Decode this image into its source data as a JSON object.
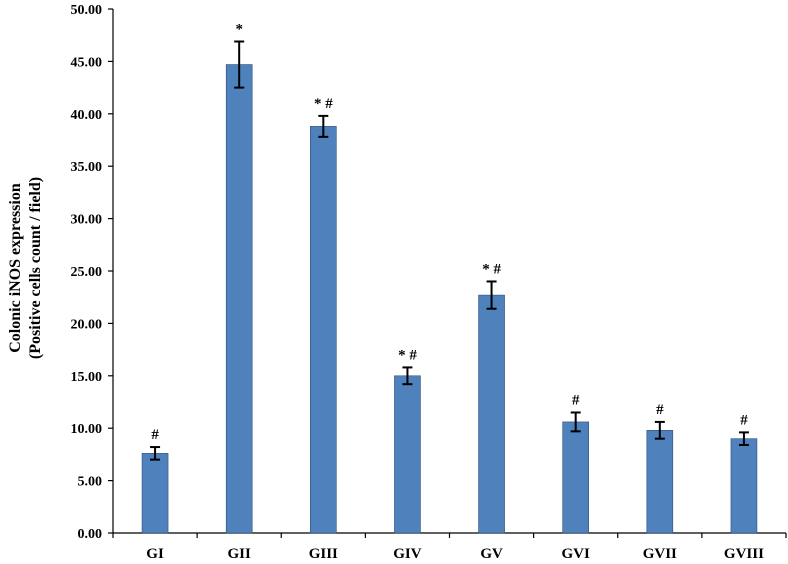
{
  "chart_data": {
    "type": "bar",
    "categories": [
      "GI",
      "GII",
      "GIII",
      "GIV",
      "GV",
      "GVI",
      "GVII",
      "GVIII"
    ],
    "values": [
      7.6,
      44.7,
      38.8,
      15.0,
      22.7,
      10.6,
      9.8,
      9.0
    ],
    "errors": [
      0.6,
      2.2,
      1.0,
      0.8,
      1.3,
      0.9,
      0.8,
      0.6
    ],
    "annotations": [
      "#",
      "*",
      "* #",
      "* #",
      "* #",
      "#",
      "#",
      "#"
    ],
    "ylabel_lines": [
      "Colonic iNOS expression",
      "(Positive cells count / field)"
    ],
    "xlabel": "",
    "title": "",
    "ylim": [
      0,
      50
    ],
    "ytick_labels": [
      "0.00",
      "5.00",
      "10.00",
      "15.00",
      "20.00",
      "25.00",
      "30.00",
      "35.00",
      "40.00",
      "45.00",
      "50.00"
    ],
    "bar_color": "#4f81bd",
    "grid": false,
    "legend": false
  }
}
